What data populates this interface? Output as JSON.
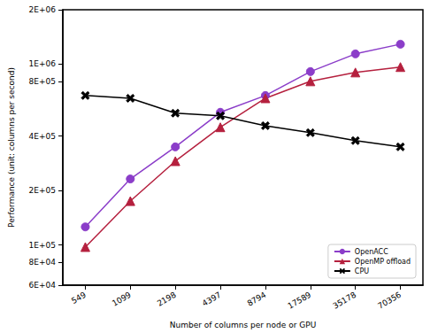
{
  "chart_data": {
    "type": "line",
    "x_label": "Number of columns per node or GPU",
    "y_label": "Performance (unit: columns per second)",
    "categories": [
      "549",
      "1099",
      "2198",
      "4397",
      "8794",
      "17589",
      "35178",
      "70356"
    ],
    "series": [
      {
        "name": "OpenACC",
        "color": "#8b3dc9",
        "marker": "circle",
        "values": [
          126000,
          232000,
          349000,
          542000,
          671000,
          910000,
          1140000,
          1290000
        ]
      },
      {
        "name": "OpenMP offload",
        "color": "#b5203e",
        "marker": "triangle",
        "values": [
          97500,
          175000,
          291000,
          448000,
          648000,
          804000,
          900000,
          964000
        ]
      },
      {
        "name": "CPU",
        "color": "#000000",
        "marker": "x",
        "values": [
          671000,
          648000,
          536000,
          518000,
          457000,
          418000,
          378000,
          349000
        ]
      }
    ],
    "log": "y",
    "ylim": [
      60000,
      2000000
    ],
    "yticks": [
      {
        "value": 60000,
        "label": "6E+04"
      },
      {
        "value": 80000,
        "label": "8E+04"
      },
      {
        "value": 100000,
        "label": "1E+05"
      },
      {
        "value": 200000,
        "label": "2E+05"
      },
      {
        "value": 400000,
        "label": "4E+05"
      },
      {
        "value": 800000,
        "label": "8E+05"
      },
      {
        "value": 1000000,
        "label": "1E+06"
      },
      {
        "value": 2000000,
        "label": "2E+06"
      }
    ],
    "grid": false,
    "legend": "lower right"
  }
}
